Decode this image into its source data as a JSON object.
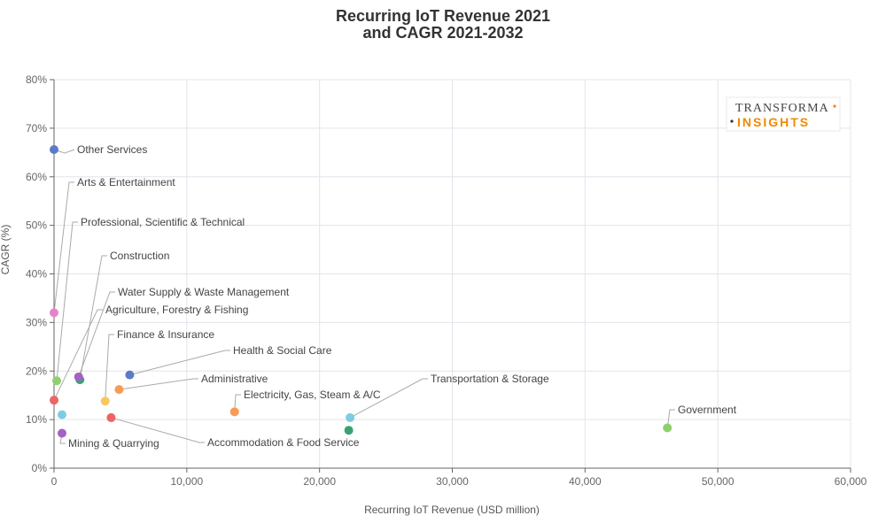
{
  "chart_data": {
    "type": "scatter",
    "title": [
      "Recurring IoT Revenue 2021",
      "and CAGR 2021-2032"
    ],
    "xlabel": "Recurring IoT Revenue (USD million)",
    "ylabel": "CAGR (%)",
    "xlim": [
      0,
      60000
    ],
    "ylim": [
      0,
      80
    ],
    "x_ticks": [
      0,
      10000,
      20000,
      30000,
      40000,
      50000,
      60000
    ],
    "x_tick_labels": [
      "0",
      "10,000",
      "20,000",
      "30,000",
      "40,000",
      "50,000",
      "60,000"
    ],
    "y_ticks": [
      0,
      10,
      20,
      30,
      40,
      50,
      60,
      70,
      80
    ],
    "y_tick_labels": [
      "0%",
      "10%",
      "20%",
      "30%",
      "40%",
      "50%",
      "60%",
      "70%",
      "80%"
    ],
    "grid": true,
    "points": [
      {
        "x": 0,
        "y": 65.6,
        "color": "#5b7bc9",
        "label": "Other Services"
      },
      {
        "x": 0,
        "y": 32.0,
        "color": "#e783c9",
        "label": "Arts & Entertainment"
      },
      {
        "x": 200,
        "y": 18.0,
        "color": "#8fd06e",
        "label": "Professional, Scientific & Technical"
      },
      {
        "x": 1950,
        "y": 18.2,
        "color": "#3aa173",
        "label": "Construction"
      },
      {
        "x": 1850,
        "y": 18.8,
        "color": "#a463c2",
        "label": "Water Supply & Waste Management"
      },
      {
        "x": 0,
        "y": 14.0,
        "color": "#ec6464",
        "label": "Agriculture, Forestry & Fishing"
      },
      {
        "x": 3850,
        "y": 13.8,
        "color": "#f7c85c",
        "label": "Finance & Insurance"
      },
      {
        "x": 5700,
        "y": 19.2,
        "color": "#5b7bc9",
        "label": "Health & Social Care"
      },
      {
        "x": 4900,
        "y": 16.2,
        "color": "#f99b57",
        "label": "Administrative"
      },
      {
        "x": 13600,
        "y": 11.6,
        "color": "#f99b57",
        "label": "Electricity, Gas, Steam & A/C"
      },
      {
        "x": 600,
        "y": 11.0,
        "color": "#7ecbe4",
        "label": null
      },
      {
        "x": 4300,
        "y": 10.4,
        "color": "#ec6464",
        "label": "Accommodation & Food Service"
      },
      {
        "x": 22300,
        "y": 10.4,
        "color": "#7ecbe4",
        "label": "Transportation & Storage"
      },
      {
        "x": 22200,
        "y": 7.8,
        "color": "#3aa173",
        "label": null
      },
      {
        "x": 46200,
        "y": 8.3,
        "color": "#8fd06e",
        "label": "Government"
      },
      {
        "x": 600,
        "y": 7.2,
        "color": "#a463c2",
        "label": "Mining & Quarrying"
      }
    ]
  },
  "logo": {
    "top": "TRANSFORMA",
    "bottom": "INSIGHTS"
  },
  "colors": {
    "axis": "#666666",
    "grid": "#e4e4ec",
    "leader": "#aaaaaa",
    "logo_accent": "#f08a00"
  }
}
